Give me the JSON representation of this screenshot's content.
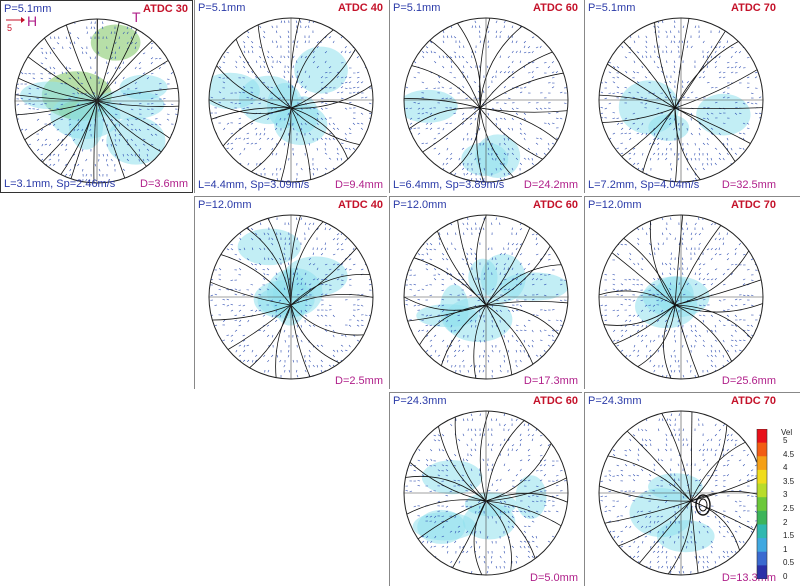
{
  "panels": [
    {
      "id": "p1",
      "p": "P=5.1mm",
      "atdc": "ATDC 30",
      "l": "L=3.1mm, Sp=2.46m/s",
      "d": "D=3.6mm",
      "h": "H",
      "t": "T",
      "scale": "5"
    },
    {
      "id": "p2",
      "p": "P=5.1mm",
      "atdc": "ATDC 40",
      "l": "L=4.4mm, Sp=3.09m/s",
      "d": "D=9.4mm"
    },
    {
      "id": "p3",
      "p": "P=5.1mm",
      "atdc": "ATDC 60",
      "l": "L=6.4mm, Sp=3.89m/s",
      "d": "D=24.2mm"
    },
    {
      "id": "p4",
      "p": "P=5.1mm",
      "atdc": "ATDC 70",
      "l": "L=7.2mm, Sp=4.04m/s",
      "d": "D=32.5mm"
    },
    {
      "id": "p5",
      "p": "P=12.0mm",
      "atdc": "ATDC 40",
      "d": "D=2.5mm"
    },
    {
      "id": "p6",
      "p": "P=12.0mm",
      "atdc": "ATDC 60",
      "d": "D=17.3mm"
    },
    {
      "id": "p7",
      "p": "P=12.0mm",
      "atdc": "ATDC 70",
      "d": "D=25.6mm"
    },
    {
      "id": "p8",
      "p": "P=24.3mm",
      "atdc": "ATDC 60",
      "d": "D=5.0mm"
    },
    {
      "id": "p9",
      "p": "P=24.3mm",
      "atdc": "ATDC 70",
      "d": "D=13.3mm"
    }
  ],
  "legend": {
    "title": "Vel",
    "ticks": [
      "5",
      "4.5",
      "4",
      "3.5",
      "3",
      "2.5",
      "2",
      "1.5",
      "1",
      "0.5",
      "0"
    ],
    "colors": [
      "#e8101a",
      "#f25c12",
      "#f5a016",
      "#f0dc1c",
      "#b8dc2a",
      "#6cc83a",
      "#3cb45a",
      "#30b8b0",
      "#40a8e0",
      "#3a6ad0",
      "#2a30a8"
    ]
  },
  "colors": {
    "p_label": "#2a3aa8",
    "atdc_label": "#c4122a",
    "d_label": "#b0208a",
    "cyan_fill": "#8fe0ec",
    "green_fill": "#7cc460"
  }
}
